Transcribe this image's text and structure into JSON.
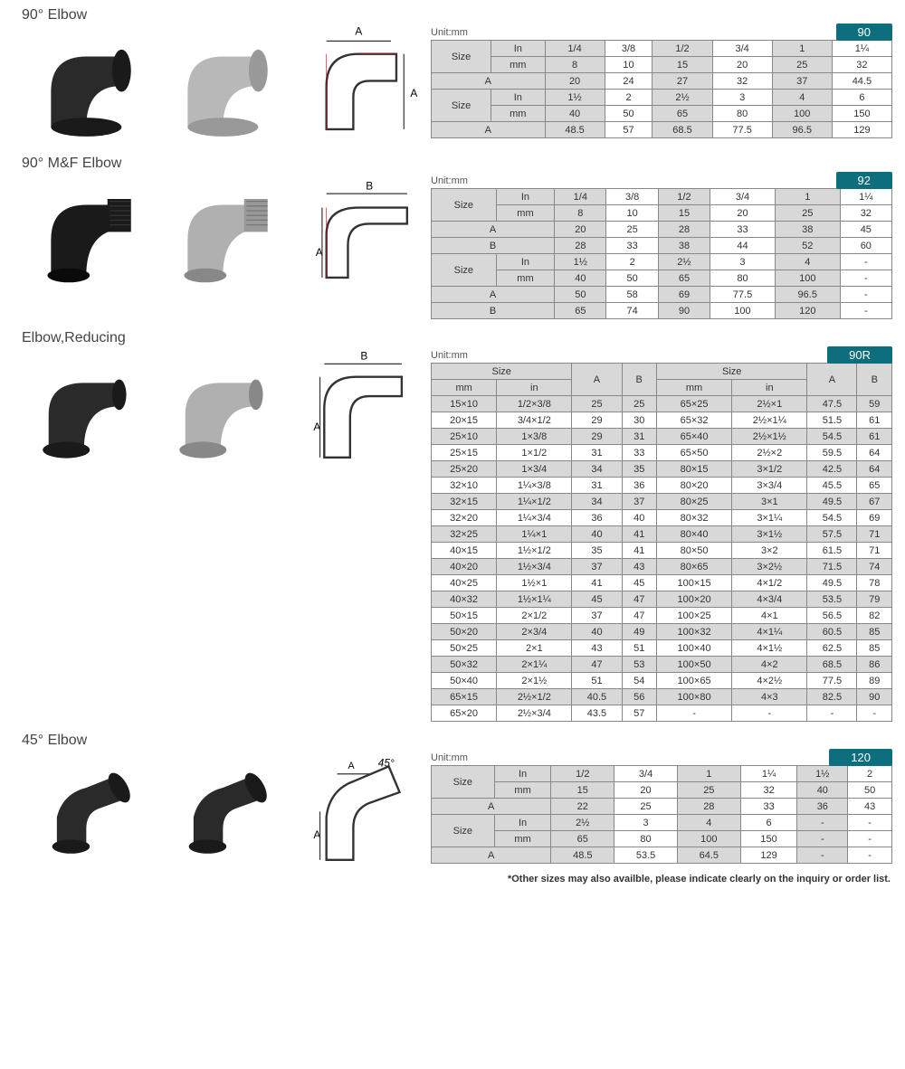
{
  "sections": {
    "s1": {
      "title": "90° Elbow",
      "badge": "90",
      "unit": "Unit:mm",
      "header_cols": [
        "1/4",
        "3/8",
        "1/2",
        "3/4",
        "1",
        "1¼"
      ],
      "rows1": [
        {
          "h": "mm",
          "v": [
            "8",
            "10",
            "15",
            "20",
            "25",
            "32"
          ]
        },
        {
          "h": "A",
          "v": [
            "20",
            "24",
            "27",
            "32",
            "37",
            "44.5"
          ],
          "span": true
        }
      ],
      "header_cols2": [
        "1½",
        "2",
        "2½",
        "3",
        "4",
        "6"
      ],
      "rows2": [
        {
          "h": "mm",
          "v": [
            "40",
            "50",
            "65",
            "80",
            "100",
            "150"
          ]
        },
        {
          "h": "A",
          "v": [
            "48.5",
            "57",
            "68.5",
            "77.5",
            "96.5",
            "129"
          ],
          "span": true
        }
      ]
    },
    "s2": {
      "title": "90° M&F Elbow",
      "badge": "92",
      "unit": "Unit:mm",
      "header_cols": [
        "1/4",
        "3/8",
        "1/2",
        "3/4",
        "1",
        "1¼"
      ],
      "rows1": [
        {
          "h": "mm",
          "v": [
            "8",
            "10",
            "15",
            "20",
            "25",
            "32"
          ]
        },
        {
          "h": "A",
          "v": [
            "20",
            "25",
            "28",
            "33",
            "38",
            "45"
          ],
          "span": true
        },
        {
          "h": "B",
          "v": [
            "28",
            "33",
            "38",
            "44",
            "52",
            "60"
          ],
          "span": true
        }
      ],
      "header_cols2": [
        "1½",
        "2",
        "2½",
        "3",
        "4",
        "-"
      ],
      "rows2": [
        {
          "h": "mm",
          "v": [
            "40",
            "50",
            "65",
            "80",
            "100",
            "-"
          ]
        },
        {
          "h": "A",
          "v": [
            "50",
            "58",
            "69",
            "77.5",
            "96.5",
            "-"
          ],
          "span": true
        },
        {
          "h": "B",
          "v": [
            "65",
            "74",
            "90",
            "100",
            "120",
            "-"
          ],
          "span": true
        }
      ]
    },
    "s3": {
      "title": "Elbow,Reducing",
      "badge": "90R",
      "unit": "Unit:mm",
      "headers": [
        "mm",
        "in",
        "A",
        "B",
        "mm",
        "in",
        "A",
        "B"
      ],
      "group_headers": [
        "Size",
        "",
        "Size",
        ""
      ],
      "rows": [
        [
          "15×10",
          "1/2×3/8",
          "25",
          "25",
          "65×25",
          "2½×1",
          "47.5",
          "59"
        ],
        [
          "20×15",
          "3/4×1/2",
          "29",
          "30",
          "65×32",
          "2½×1¼",
          "51.5",
          "61"
        ],
        [
          "25×10",
          "1×3/8",
          "29",
          "31",
          "65×40",
          "2½×1½",
          "54.5",
          "61"
        ],
        [
          "25×15",
          "1×1/2",
          "31",
          "33",
          "65×50",
          "2½×2",
          "59.5",
          "64"
        ],
        [
          "25×20",
          "1×3/4",
          "34",
          "35",
          "80×15",
          "3×1/2",
          "42.5",
          "64"
        ],
        [
          "32×10",
          "1¼×3/8",
          "31",
          "36",
          "80×20",
          "3×3/4",
          "45.5",
          "65"
        ],
        [
          "32×15",
          "1¼×1/2",
          "34",
          "37",
          "80×25",
          "3×1",
          "49.5",
          "67"
        ],
        [
          "32×20",
          "1¼×3/4",
          "36",
          "40",
          "80×32",
          "3×1¼",
          "54.5",
          "69"
        ],
        [
          "32×25",
          "1¼×1",
          "40",
          "41",
          "80×40",
          "3×1½",
          "57.5",
          "71"
        ],
        [
          "40×15",
          "1½×1/2",
          "35",
          "41",
          "80×50",
          "3×2",
          "61.5",
          "71"
        ],
        [
          "40×20",
          "1½×3/4",
          "37",
          "43",
          "80×65",
          "3×2½",
          "71.5",
          "74"
        ],
        [
          "40×25",
          "1½×1",
          "41",
          "45",
          "100×15",
          "4×1/2",
          "49.5",
          "78"
        ],
        [
          "40×32",
          "1½×1¼",
          "45",
          "47",
          "100×20",
          "4×3/4",
          "53.5",
          "79"
        ],
        [
          "50×15",
          "2×1/2",
          "37",
          "47",
          "100×25",
          "4×1",
          "56.5",
          "82"
        ],
        [
          "50×20",
          "2×3/4",
          "40",
          "49",
          "100×32",
          "4×1¼",
          "60.5",
          "85"
        ],
        [
          "50×25",
          "2×1",
          "43",
          "51",
          "100×40",
          "4×1½",
          "62.5",
          "85"
        ],
        [
          "50×32",
          "2×1¼",
          "47",
          "53",
          "100×50",
          "4×2",
          "68.5",
          "86"
        ],
        [
          "50×40",
          "2×1½",
          "51",
          "54",
          "100×65",
          "4×2½",
          "77.5",
          "89"
        ],
        [
          "65×15",
          "2½×1/2",
          "40.5",
          "56",
          "100×80",
          "4×3",
          "82.5",
          "90"
        ],
        [
          "65×20",
          "2½×3/4",
          "43.5",
          "57",
          "-",
          "-",
          "-",
          "-"
        ]
      ]
    },
    "s4": {
      "title": "45° Elbow",
      "badge": "120",
      "unit": "Unit:mm",
      "header_cols": [
        "1/2",
        "3/4",
        "1",
        "1¼",
        "1½",
        "2"
      ],
      "rows1": [
        {
          "h": "mm",
          "v": [
            "15",
            "20",
            "25",
            "32",
            "40",
            "50"
          ]
        },
        {
          "h": "A",
          "v": [
            "22",
            "25",
            "28",
            "33",
            "36",
            "43"
          ],
          "span": true
        }
      ],
      "header_cols2": [
        "2½",
        "3",
        "4",
        "6",
        "-",
        "-"
      ],
      "rows2": [
        {
          "h": "mm",
          "v": [
            "65",
            "80",
            "100",
            "150",
            "-",
            "-"
          ]
        },
        {
          "h": "A",
          "v": [
            "48.5",
            "53.5",
            "64.5",
            "129",
            "-",
            "-"
          ],
          "span": true
        }
      ]
    }
  },
  "footnote": "*Other sizes may also availble, please indicate clearly on the inquiry or order list.",
  "colors": {
    "badge": "#0d6e7d",
    "hdr": "#d8d8d8",
    "border": "#888",
    "text": "#333"
  }
}
